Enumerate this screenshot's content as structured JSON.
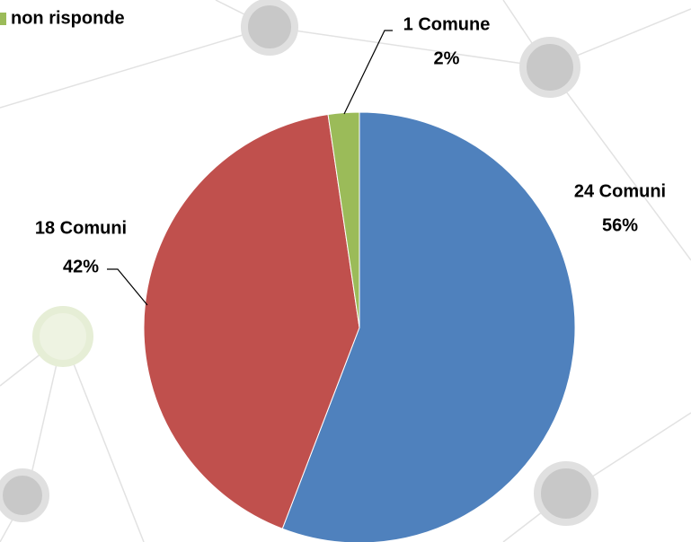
{
  "chart_data": {
    "type": "pie",
    "categories": [
      null,
      null,
      "non risponde"
    ],
    "values": [
      24,
      18,
      1
    ],
    "value_labels": [
      "24 Comuni",
      "18 Comuni",
      "1 Comune"
    ],
    "percent_labels": [
      "56%",
      "42%",
      "2%"
    ],
    "colors": [
      "#4f81bd",
      "#c0504d",
      "#9bbb59"
    ],
    "legend": "top-left"
  }
}
